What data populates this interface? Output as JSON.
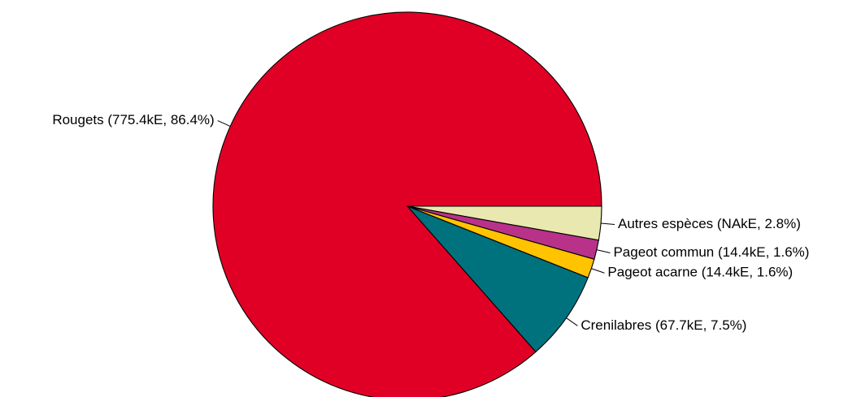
{
  "chart_data": {
    "type": "pie",
    "title": "",
    "start_angle_deg": 0,
    "direction": "clockwise",
    "slices": [
      {
        "name": "Autres espèces",
        "label": "Autres espèces (NAkE, 2.8%)",
        "percent": 2.8,
        "color": "#E8E8B0",
        "label_side": "right"
      },
      {
        "name": "Pageot commun",
        "label": "Pageot commun (14.4kE, 1.6%)",
        "value_kE": 14.4,
        "percent": 1.6,
        "color": "#B8328A",
        "label_side": "right"
      },
      {
        "name": "Pageot acarne",
        "label": "Pageot acarne (14.4kE, 1.6%)",
        "value_kE": 14.4,
        "percent": 1.6,
        "color": "#FFC300",
        "label_side": "right"
      },
      {
        "name": "Crenilabres",
        "label": "Crenilabres (67.7kE, 7.5%)",
        "value_kE": 67.7,
        "percent": 7.5,
        "color": "#00727E",
        "label_side": "right"
      },
      {
        "name": "Rougets",
        "label": "Rougets (775.4kE, 86.4%)",
        "value_kE": 775.4,
        "percent": 86.4,
        "color": "#E00025",
        "label_side": "left"
      }
    ]
  }
}
